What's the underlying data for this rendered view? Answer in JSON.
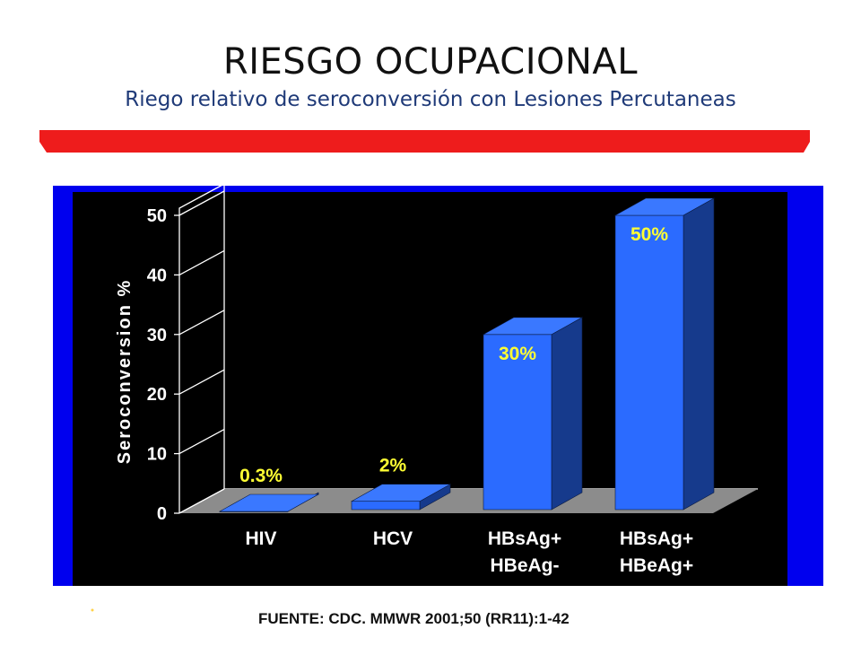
{
  "title": "RIESGO OCUPACIONAL",
  "subtitle": "Riego relativo de seroconversión con Lesiones Percutaneas",
  "source": "FUENTE: CDC. MMWR  2001;50 (RR11):1-42",
  "colors": {
    "banner_red": "#ee1c1c",
    "frame_blue": "#0000ee",
    "plot_bg": "#000000",
    "bar_front": "#2b6bff",
    "bar_side": "#163a8c",
    "bar_top": "#3a78ff",
    "floor": "#8c8c8c",
    "data_label": "#ffff33"
  },
  "chart_data": {
    "type": "bar",
    "style": "3d-column",
    "categories": [
      [
        "HIV"
      ],
      [
        "HCV"
      ],
      [
        "HBsAg+",
        "HBeAg-"
      ],
      [
        "HBsAg+",
        "HBeAg+"
      ]
    ],
    "values": [
      0.3,
      2,
      30,
      50
    ],
    "data_labels": [
      "0.3%",
      "2%",
      "30%",
      "50%"
    ],
    "ylabel": "Seroconversion %",
    "xlabel": "",
    "ylim": [
      0,
      50
    ],
    "yticks": [
      0,
      10,
      20,
      30,
      40,
      50
    ],
    "grid": false
  }
}
